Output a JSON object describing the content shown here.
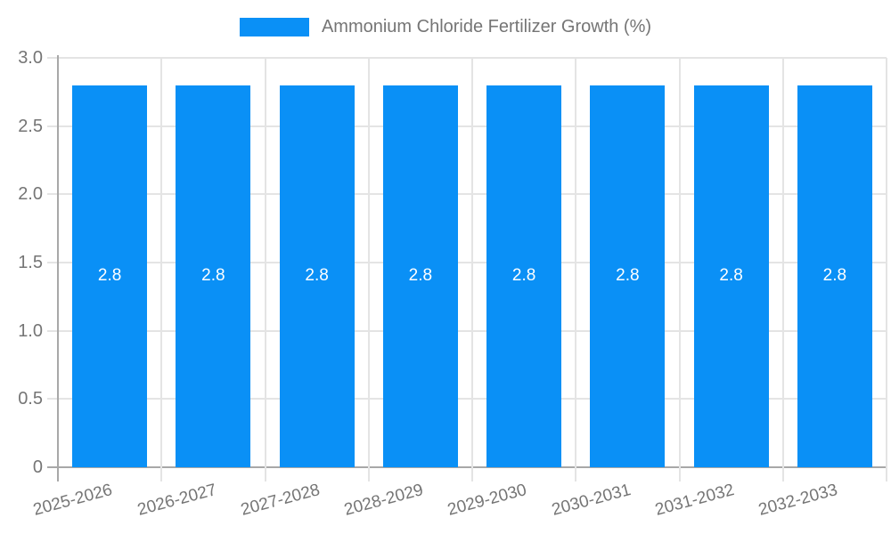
{
  "legend": {
    "label": "Ammonium Chloride Fertilizer Growth (%)"
  },
  "chart_data": {
    "type": "bar",
    "title": "Ammonium Chloride Fertilizer Growth (%)",
    "series_name": "Ammonium Chloride Fertilizer Growth (%)",
    "categories": [
      "2025-2026",
      "2026-2027",
      "2027-2028",
      "2028-2029",
      "2029-2030",
      "2030-2031",
      "2031-2032",
      "2032-2033"
    ],
    "values": [
      2.8,
      2.8,
      2.8,
      2.8,
      2.8,
      2.8,
      2.8,
      2.8
    ],
    "bar_value_labels": [
      "2.8",
      "2.8",
      "2.8",
      "2.8",
      "2.8",
      "2.8",
      "2.8",
      "2.8"
    ],
    "xlabel": "",
    "ylabel": "",
    "ylim": [
      0,
      3
    ],
    "ytick_values": [
      0,
      0.5,
      1,
      1.5,
      2,
      2.5,
      3
    ],
    "ytick_labels": [
      "0",
      "0.5",
      "1.0",
      "1.5",
      "2.0",
      "2.5",
      "3.0"
    ],
    "grid": true,
    "legend_position": "top-center",
    "colors": {
      "bar": "#0a90f6",
      "text": "#757575",
      "grid": "#e4e4e4",
      "axis": "#a8a8a8",
      "bar_label": "#ffffff",
      "background": "#ffffff"
    }
  }
}
